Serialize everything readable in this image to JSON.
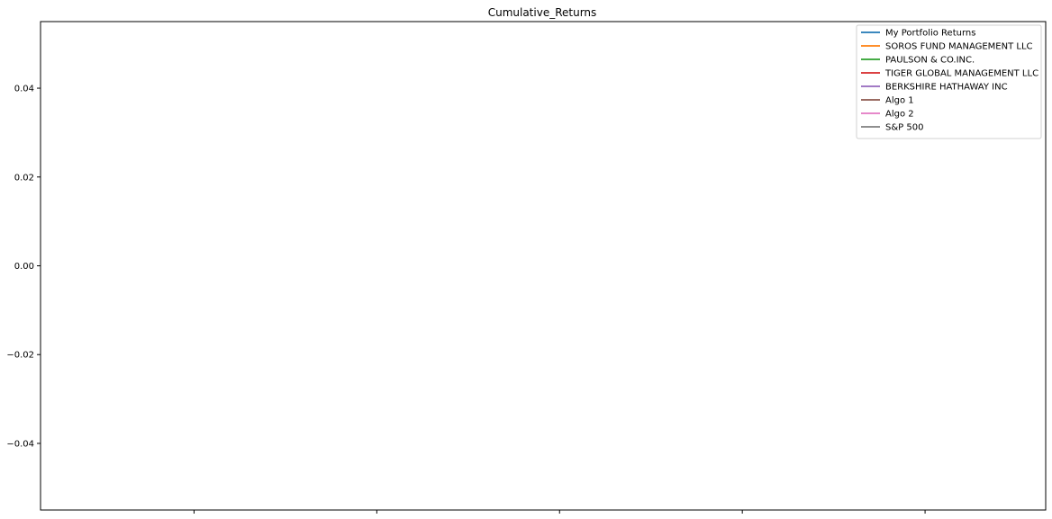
{
  "chart_data": {
    "type": "line",
    "title": "Cumulative_Returns",
    "xlabel": "",
    "ylabel": "",
    "ylim": [
      -0.055,
      0.055
    ],
    "yticks": [
      -0.04,
      -0.02,
      0.0,
      0.02,
      0.04
    ],
    "ytick_labels": [
      "−0.04",
      "−0.02",
      "0.00",
      "0.02",
      "0.04"
    ],
    "xticks_count": 5,
    "grid": false,
    "legend_position": "top-right",
    "series": [
      {
        "name": "My Portfolio Returns",
        "color": "#1f77b4",
        "values": []
      },
      {
        "name": "SOROS FUND MANAGEMENT LLC",
        "color": "#ff7f0e",
        "values": []
      },
      {
        "name": "PAULSON & CO.INC.",
        "color": "#2ca02c",
        "values": []
      },
      {
        "name": "TIGER GLOBAL MANAGEMENT LLC",
        "color": "#d62728",
        "values": []
      },
      {
        "name": "BERKSHIRE HATHAWAY INC",
        "color": "#9467bd",
        "values": []
      },
      {
        "name": "Algo 1",
        "color": "#8c564b",
        "values": []
      },
      {
        "name": "Algo 2",
        "color": "#e377c2",
        "values": []
      },
      {
        "name": "S&P 500",
        "color": "#7f7f7f",
        "values": []
      }
    ]
  }
}
